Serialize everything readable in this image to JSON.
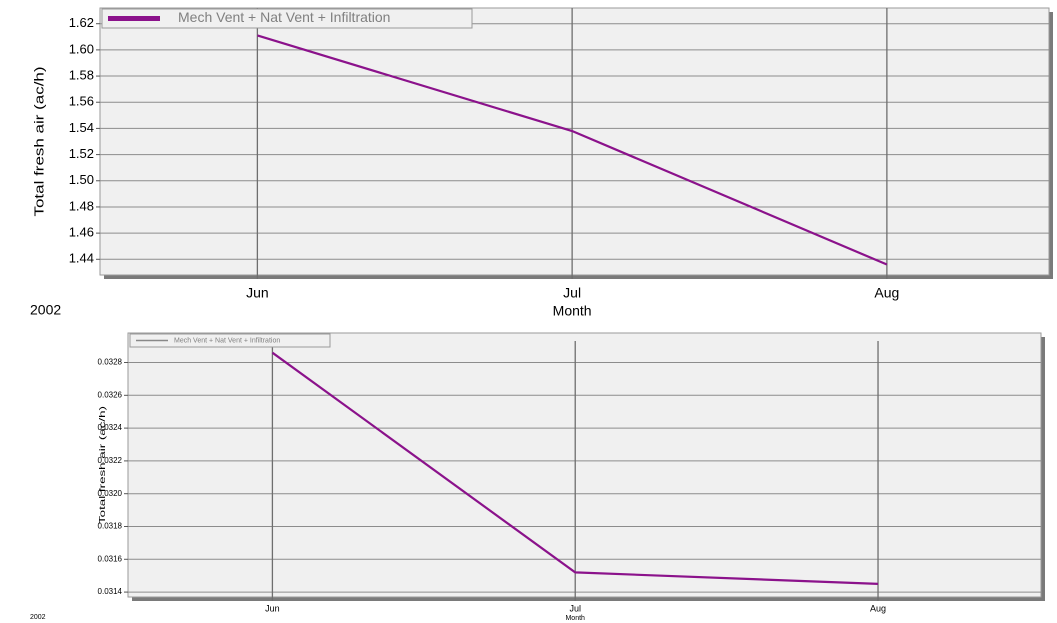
{
  "chart_data": [
    {
      "type": "line",
      "series_name": "Mech Vent + Nat Vent + Infiltration",
      "y_label": "Total fresh air (ac/h)",
      "x_label": "Month",
      "year_label": "2002",
      "categories": [
        "Jun",
        "Jul",
        "Aug"
      ],
      "series": [
        {
          "name": "Mech Vent + Nat Vent + Infiltration",
          "color": "#8b128b",
          "values": [
            1.611,
            1.538,
            1.436
          ]
        }
      ],
      "legend_swatch_color": "#8b128b",
      "ylim": [
        1.428,
        1.632
      ],
      "yticks": [
        1.44,
        1.46,
        1.48,
        {
          "value": 1.5,
          "label": "1.50"
        },
        1.52,
        1.54,
        1.56,
        1.58,
        {
          "value": 1.6,
          "label": "1.60"
        },
        1.62
      ],
      "grid": true
    },
    {
      "type": "line",
      "y_label": "Total fresh air (ac/h)",
      "x_label": "Month",
      "year_label": "2002",
      "categories": [
        "Jun",
        "Jul",
        "Aug"
      ],
      "series": [
        {
          "name": "Mech Vent + Nat Vent + Infiltration",
          "color": "#8b128b",
          "values": [
            0.03286,
            0.03152,
            0.03145
          ]
        }
      ],
      "legend_swatch_color": "#888888",
      "ylim": [
        0.03137,
        0.03298
      ],
      "yticks": [
        0.0314,
        0.0316,
        0.0318,
        {
          "value": 0.032,
          "label": "0.0320"
        },
        0.0322,
        0.0324,
        0.0326,
        0.0328
      ],
      "grid": true
    }
  ]
}
